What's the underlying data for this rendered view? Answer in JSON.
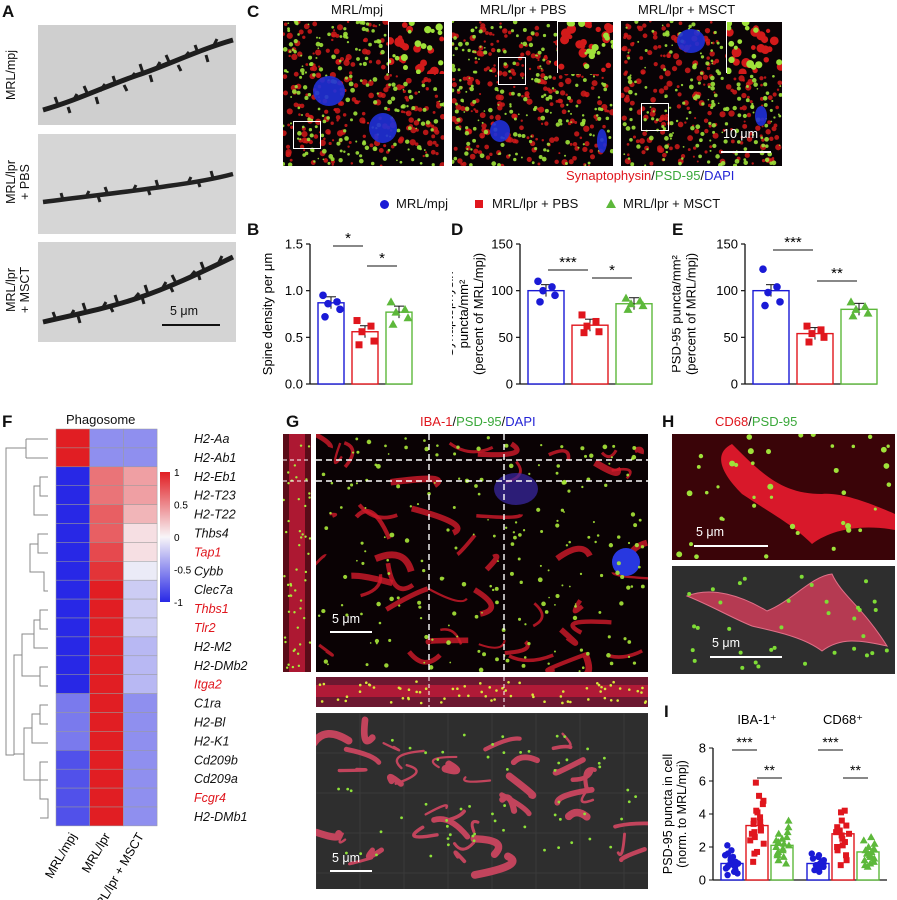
{
  "panels": {
    "A": {
      "label": "A",
      "rows": [
        "MRL/mpj",
        "MRL/lpr\n+ PBS",
        "MRL/lpr\n+ MSCT"
      ],
      "scale": "5 μm"
    },
    "B": {
      "label": "B"
    },
    "C": {
      "label": "C",
      "cols": [
        "MRL/mpj",
        "MRL/lpr + PBS",
        "MRL/lpr + MSCT"
      ],
      "scale": "10 μm",
      "stain": [
        "Synaptophysin",
        "/",
        "PSD-95",
        "/",
        "DAPI"
      ]
    },
    "D": {
      "label": "D"
    },
    "E": {
      "label": "E"
    },
    "F": {
      "label": "F",
      "title": "Phagosome"
    },
    "G": {
      "label": "G",
      "stain": [
        "IBA-1",
        "/",
        "PSD-95",
        "/",
        "DAPI"
      ],
      "scale": "5 μm"
    },
    "H": {
      "label": "H",
      "stain": [
        "CD68",
        "/",
        "PSD-95"
      ],
      "scale": "5 μm"
    },
    "I": {
      "label": "I"
    }
  },
  "legend": {
    "items": [
      {
        "label": "MRL/mpj",
        "color": "#1a1ad6",
        "marker": "circle"
      },
      {
        "label": "MRL/lpr + PBS",
        "color": "#e0161d",
        "marker": "square"
      },
      {
        "label": "MRL/lpr + MSCT",
        "color": "#5db83b",
        "marker": "triangle"
      }
    ]
  },
  "colors": {
    "blue": "#1a1ad6",
    "red": "#e0161d",
    "green": "#5db83b"
  },
  "chart_data": [
    {
      "id": "B",
      "type": "bar",
      "ylabel": "Spine density per μm",
      "ylim": [
        0,
        1.5
      ],
      "yticks": [
        "0.0",
        "0.5",
        "1.0",
        "1.5"
      ],
      "categories": [
        "MRL/mpj",
        "MRL/lpr + PBS",
        "MRL/lpr + MSCT"
      ],
      "values": [
        0.87,
        0.56,
        0.77
      ],
      "points": [
        [
          0.95,
          0.88,
          0.86,
          0.8,
          0.72
        ],
        [
          0.68,
          0.62,
          0.56,
          0.46,
          0.42
        ],
        [
          0.88,
          0.8,
          0.77,
          0.71,
          0.64
        ]
      ],
      "sig": [
        {
          "from": 0,
          "to": 1,
          "label": "*"
        },
        {
          "from": 1,
          "to": 2,
          "label": "*"
        }
      ]
    },
    {
      "id": "D",
      "type": "bar",
      "ylabel": "Synaptophysin\npuncta/mm²\n(percent of MRL/mpj)",
      "ylim": [
        0,
        150
      ],
      "yticks": [
        "0",
        "50",
        "100",
        "150"
      ],
      "categories": [
        "MRL/mpj",
        "MRL/lpr + PBS",
        "MRL/lpr + MSCT"
      ],
      "values": [
        100,
        63,
        86
      ],
      "points": [
        [
          110,
          104,
          100,
          95,
          88
        ],
        [
          74,
          67,
          62,
          56,
          55
        ],
        [
          92,
          89,
          86,
          84,
          80
        ]
      ],
      "sig": [
        {
          "from": 0,
          "to": 1,
          "label": "***"
        },
        {
          "from": 1,
          "to": 2,
          "label": "*"
        }
      ]
    },
    {
      "id": "E",
      "type": "bar",
      "ylabel": "PSD-95 puncta/mm²\n(percent of MRL/mpj)",
      "ylim": [
        0,
        150
      ],
      "yticks": [
        "0",
        "50",
        "100",
        "150"
      ],
      "categories": [
        "MRL/mpj",
        "MRL/lpr + PBS",
        "MRL/lpr + MSCT"
      ],
      "values": [
        100,
        54,
        80
      ],
      "points": [
        [
          123,
          104,
          98,
          88,
          84
        ],
        [
          62,
          58,
          54,
          50,
          45
        ],
        [
          88,
          83,
          80,
          76,
          73
        ]
      ],
      "sig": [
        {
          "from": 0,
          "to": 1,
          "label": "***"
        },
        {
          "from": 1,
          "to": 2,
          "label": "**"
        }
      ]
    },
    {
      "id": "F",
      "type": "heatmap",
      "columns": [
        "MRL/mpj",
        "MRL/lpr",
        "MRL/lpr + MSCT"
      ],
      "colorbar": {
        "min": -1,
        "max": 1,
        "ticks": [
          "1",
          "0.5",
          "0",
          "-0.5",
          "-1"
        ]
      },
      "rows": [
        {
          "gene": "H2-Aa",
          "highlight": false,
          "values": [
            1.0,
            -0.5,
            -0.5
          ]
        },
        {
          "gene": "H2-Ab1",
          "highlight": false,
          "values": [
            1.0,
            -0.5,
            -0.5
          ]
        },
        {
          "gene": "H2-Eb1",
          "highlight": false,
          "values": [
            -1.0,
            0.6,
            0.4
          ]
        },
        {
          "gene": "H2-T23",
          "highlight": false,
          "values": [
            -1.0,
            0.6,
            0.4
          ]
        },
        {
          "gene": "H2-T22",
          "highlight": false,
          "values": [
            -1.0,
            0.7,
            0.3
          ]
        },
        {
          "gene": "Thbs4",
          "highlight": false,
          "values": [
            -1.0,
            0.7,
            0.1
          ]
        },
        {
          "gene": "Tap1",
          "highlight": true,
          "values": [
            -1.0,
            0.8,
            0.1
          ]
        },
        {
          "gene": "Cybb",
          "highlight": false,
          "values": [
            -1.0,
            0.9,
            -0.05
          ]
        },
        {
          "gene": "Clec7a",
          "highlight": false,
          "values": [
            -1.0,
            1.0,
            -0.2
          ]
        },
        {
          "gene": "Thbs1",
          "highlight": true,
          "values": [
            -1.0,
            1.0,
            -0.2
          ]
        },
        {
          "gene": "Tlr2",
          "highlight": true,
          "values": [
            -1.0,
            1.0,
            -0.2
          ]
        },
        {
          "gene": "H2-M2",
          "highlight": false,
          "values": [
            -1.0,
            1.0,
            -0.3
          ]
        },
        {
          "gene": "H2-DMb2",
          "highlight": false,
          "values": [
            -1.0,
            1.0,
            -0.3
          ]
        },
        {
          "gene": "Itga2",
          "highlight": true,
          "values": [
            -1.0,
            1.0,
            -0.3
          ]
        },
        {
          "gene": "C1ra",
          "highlight": false,
          "values": [
            -0.6,
            1.0,
            -0.5
          ]
        },
        {
          "gene": "H2-Bl",
          "highlight": false,
          "values": [
            -0.6,
            1.0,
            -0.5
          ]
        },
        {
          "gene": "H2-K1",
          "highlight": false,
          "values": [
            -0.6,
            1.0,
            -0.5
          ]
        },
        {
          "gene": "Cd209b",
          "highlight": false,
          "values": [
            -0.8,
            1.0,
            -0.5
          ]
        },
        {
          "gene": "Cd209a",
          "highlight": false,
          "values": [
            -0.8,
            1.0,
            -0.5
          ]
        },
        {
          "gene": "Fcgr4",
          "highlight": true,
          "values": [
            -0.8,
            1.0,
            -0.5
          ]
        },
        {
          "gene": "H2-DMb1",
          "highlight": false,
          "values": [
            -0.8,
            1.0,
            -0.5
          ]
        }
      ]
    },
    {
      "id": "I",
      "type": "bar",
      "ylabel": "PSD-95 puncta in cell\n(norm. to MRL/mpj)",
      "ylim": [
        0,
        8
      ],
      "yticks": [
        "0",
        "2",
        "4",
        "6",
        "8"
      ],
      "groups": [
        "IBA-1⁺",
        "CD68⁺"
      ],
      "series": [
        {
          "values": [
            1.0,
            1.0
          ]
        },
        {
          "values": [
            3.3,
            2.8
          ]
        },
        {
          "values": [
            2.1,
            1.7
          ]
        }
      ],
      "points": [
        [
          [
            0.3,
            0.4,
            0.5,
            0.6,
            0.7,
            0.8,
            0.8,
            0.9,
            0.9,
            1.0,
            1.0,
            1.1,
            1.2,
            1.3,
            1.4,
            1.5,
            1.6,
            1.8,
            2.1
          ],
          [
            1.1,
            3.5,
            4.2,
            4.8,
            2.4,
            3.0,
            3.8,
            2.8,
            5.9,
            4.6,
            1.7,
            3.2,
            2.2,
            4.1,
            3.6,
            2.9,
            5.1,
            1.6,
            2.6,
            3.4
          ],
          [
            2.8,
            1.9,
            2.3,
            1.5,
            3.2,
            2.6,
            1.2,
            2.1,
            1.7,
            2.9,
            2.4,
            1.0,
            1.8,
            2.2,
            3.6,
            1.4,
            2.0,
            1.6,
            2.5
          ]
        ],
        [
          [
            0.5,
            0.6,
            0.7,
            0.8,
            0.8,
            0.9,
            0.9,
            1.0,
            1.0,
            1.1,
            1.1,
            1.2,
            1.3,
            1.4,
            1.5,
            1.6
          ],
          [
            4.2,
            3.2,
            2.7,
            1.8,
            2.1,
            3.6,
            2.9,
            1.2,
            2.5,
            3.3,
            0.9,
            2.8,
            1.5,
            2.3,
            3.0,
            4.1,
            2.0
          ],
          [
            1.4,
            1.1,
            2.4,
            1.8,
            1.6,
            0.8,
            2.0,
            1.5,
            1.2,
            2.6,
            1.9,
            1.3,
            0.9,
            1.7,
            2.2,
            1.0,
            1.6,
            1.4
          ]
        ]
      ],
      "sig": [
        {
          "group": 0,
          "from": 0,
          "to": 1,
          "label": "***"
        },
        {
          "group": 0,
          "from": 1,
          "to": 2,
          "label": "**"
        },
        {
          "group": 1,
          "from": 0,
          "to": 1,
          "label": "***"
        },
        {
          "group": 1,
          "from": 1,
          "to": 2,
          "label": "**"
        }
      ]
    }
  ]
}
